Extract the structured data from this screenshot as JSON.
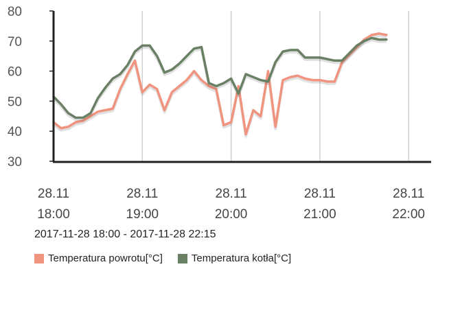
{
  "chart_data": {
    "type": "line",
    "range_label": "2017-11-28 18:00 - 2017-11-28 22:15",
    "ylim": [
      30,
      80
    ],
    "yticks": [
      30,
      40,
      50,
      60,
      70,
      80
    ],
    "xlim": [
      0,
      255
    ],
    "xticks": [
      {
        "at": 0,
        "date": "28.11",
        "time": "18:00"
      },
      {
        "at": 60,
        "date": "28.11",
        "time": "19:00"
      },
      {
        "at": 120,
        "date": "28.11",
        "time": "20:00"
      },
      {
        "at": 180,
        "date": "28.11",
        "time": "21:00"
      },
      {
        "at": 240,
        "date": "28.11",
        "time": "22:00"
      }
    ],
    "x_unit": "minutes since 18:00",
    "grid": "vertical",
    "series": [
      {
        "name": "Temperatura powrotu[°C]",
        "color": "#f1947f",
        "points": [
          [
            0,
            43
          ],
          [
            5,
            41
          ],
          [
            10,
            41.5
          ],
          [
            15,
            43
          ],
          [
            20,
            43.5
          ],
          [
            25,
            45
          ],
          [
            30,
            46.5
          ],
          [
            35,
            47
          ],
          [
            40,
            47.5
          ],
          [
            45,
            54
          ],
          [
            50,
            59
          ],
          [
            55,
            63.5
          ],
          [
            60,
            53
          ],
          [
            65,
            55.5
          ],
          [
            70,
            54
          ],
          [
            75,
            47
          ],
          [
            80,
            53
          ],
          [
            85,
            55
          ],
          [
            90,
            57
          ],
          [
            95,
            60
          ],
          [
            100,
            57
          ],
          [
            105,
            55
          ],
          [
            110,
            54
          ],
          [
            115,
            42
          ],
          [
            120,
            43
          ],
          [
            125,
            55
          ],
          [
            130,
            39
          ],
          [
            135,
            47
          ],
          [
            140,
            45
          ],
          [
            145,
            60
          ],
          [
            150,
            41.5
          ],
          [
            155,
            57
          ],
          [
            160,
            58
          ],
          [
            165,
            58.5
          ],
          [
            170,
            57.5
          ],
          [
            175,
            57
          ],
          [
            180,
            57
          ],
          [
            185,
            56.5
          ],
          [
            190,
            56.5
          ],
          [
            195,
            63
          ],
          [
            200,
            65.5
          ],
          [
            205,
            68
          ],
          [
            210,
            70.5
          ],
          [
            215,
            72
          ],
          [
            220,
            72.5
          ],
          [
            225,
            72
          ]
        ]
      },
      {
        "name": "Temperatura kotła[°C]",
        "color": "#6a8065",
        "points": [
          [
            0,
            51.5
          ],
          [
            5,
            49
          ],
          [
            10,
            46
          ],
          [
            15,
            44.5
          ],
          [
            20,
            44.5
          ],
          [
            25,
            46
          ],
          [
            30,
            51
          ],
          [
            35,
            54.5
          ],
          [
            40,
            57.5
          ],
          [
            45,
            59
          ],
          [
            50,
            62
          ],
          [
            55,
            66.5
          ],
          [
            60,
            68.5
          ],
          [
            65,
            68.5
          ],
          [
            70,
            65
          ],
          [
            75,
            59.5
          ],
          [
            80,
            60.5
          ],
          [
            85,
            62.5
          ],
          [
            90,
            65
          ],
          [
            95,
            67.5
          ],
          [
            100,
            68
          ],
          [
            105,
            56
          ],
          [
            110,
            55
          ],
          [
            115,
            56
          ],
          [
            120,
            57.5
          ],
          [
            125,
            52.5
          ],
          [
            130,
            59
          ],
          [
            135,
            58
          ],
          [
            140,
            57
          ],
          [
            145,
            56.5
          ],
          [
            150,
            63
          ],
          [
            155,
            66.5
          ],
          [
            160,
            67
          ],
          [
            165,
            67
          ],
          [
            170,
            64.5
          ],
          [
            175,
            64.5
          ],
          [
            180,
            64.5
          ],
          [
            185,
            64
          ],
          [
            190,
            63.5
          ],
          [
            195,
            63.5
          ],
          [
            200,
            66
          ],
          [
            205,
            68.5
          ],
          [
            210,
            70
          ],
          [
            215,
            71
          ],
          [
            220,
            70.5
          ],
          [
            225,
            70.5
          ]
        ]
      }
    ]
  }
}
